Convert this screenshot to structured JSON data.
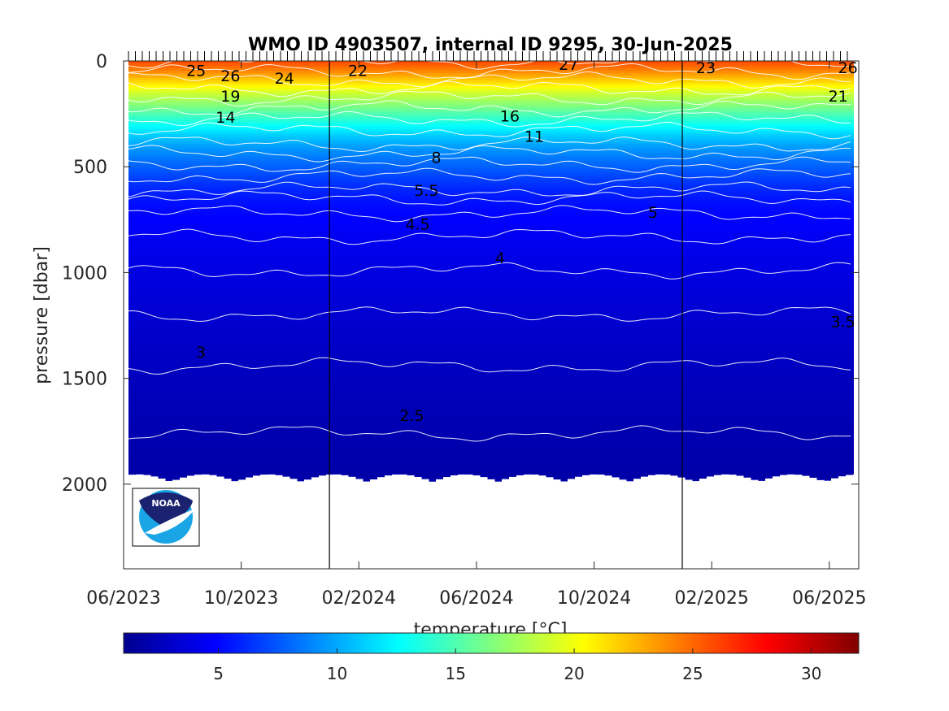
{
  "chart_data": {
    "type": "heatmap",
    "title": "WMO ID 4903507, internal ID 9295, 30-Jun-2025",
    "xlabel": "",
    "ylabel": "pressure [dbar]",
    "colorbar_label": "temperature [°C]",
    "colormap": "jet",
    "x_ticks": [
      "06/2023",
      "10/2023",
      "02/2024",
      "06/2024",
      "10/2024",
      "02/2025",
      "06/2025"
    ],
    "x_range": [
      "2023-06",
      "2025-07"
    ],
    "year_boundaries": [
      "2024-01",
      "2025-01"
    ],
    "y_ticks": [
      0,
      500,
      1000,
      1500,
      2000
    ],
    "y_range": [
      0,
      2400
    ],
    "y_reversed": true,
    "colorbar_ticks": [
      5,
      10,
      15,
      20,
      25,
      30
    ],
    "colorbar_range": [
      1,
      32
    ],
    "max_depth_dbar": 2000,
    "temperature_profile": [
      {
        "pressure": 0,
        "temperature": 26
      },
      {
        "pressure": 50,
        "temperature": 24
      },
      {
        "pressure": 100,
        "temperature": 21.5
      },
      {
        "pressure": 150,
        "temperature": 19
      },
      {
        "pressure": 200,
        "temperature": 17
      },
      {
        "pressure": 250,
        "temperature": 15
      },
      {
        "pressure": 300,
        "temperature": 13
      },
      {
        "pressure": 350,
        "temperature": 11.2
      },
      {
        "pressure": 400,
        "temperature": 9.8
      },
      {
        "pressure": 450,
        "temperature": 8.7
      },
      {
        "pressure": 500,
        "temperature": 7.8
      },
      {
        "pressure": 550,
        "temperature": 6.9
      },
      {
        "pressure": 600,
        "temperature": 6.1
      },
      {
        "pressure": 650,
        "temperature": 5.5
      },
      {
        "pressure": 700,
        "temperature": 5.1
      },
      {
        "pressure": 800,
        "temperature": 4.6
      },
      {
        "pressure": 950,
        "temperature": 4.1
      },
      {
        "pressure": 1150,
        "temperature": 3.6
      },
      {
        "pressure": 1380,
        "temperature": 3.1
      },
      {
        "pressure": 1680,
        "temperature": 2.6
      },
      {
        "pressure": 2000,
        "temperature": 2.2
      }
    ],
    "contour_labels": [
      {
        "text": "25",
        "date": "2023-08-15",
        "pressure": 45
      },
      {
        "text": "26",
        "date": "2023-09-20",
        "pressure": 70
      },
      {
        "text": "24",
        "date": "2023-11-15",
        "pressure": 80
      },
      {
        "text": "22",
        "date": "2024-01-30",
        "pressure": 45
      },
      {
        "text": "27",
        "date": "2024-09-05",
        "pressure": 15
      },
      {
        "text": "23",
        "date": "2025-01-25",
        "pressure": 30
      },
      {
        "text": "26",
        "date": "2025-06-20",
        "pressure": 30
      },
      {
        "text": "19",
        "date": "2023-09-20",
        "pressure": 165
      },
      {
        "text": "14",
        "date": "2023-09-15",
        "pressure": 265
      },
      {
        "text": "21",
        "date": "2025-06-10",
        "pressure": 165
      },
      {
        "text": "16",
        "date": "2024-07-05",
        "pressure": 260
      },
      {
        "text": "11",
        "date": "2024-07-30",
        "pressure": 355
      },
      {
        "text": "8",
        "date": "2024-04-20",
        "pressure": 455
      },
      {
        "text": "5.5",
        "date": "2024-04-10",
        "pressure": 610
      },
      {
        "text": "5",
        "date": "2024-12-01",
        "pressure": 715
      },
      {
        "text": "4.5",
        "date": "2024-04-01",
        "pressure": 770
      },
      {
        "text": "4",
        "date": "2024-06-25",
        "pressure": 930
      },
      {
        "text": "3.5",
        "date": "2025-06-15",
        "pressure": 1230
      },
      {
        "text": "3",
        "date": "2023-08-20",
        "pressure": 1375
      },
      {
        "text": "2.5",
        "date": "2024-03-25",
        "pressure": 1675
      }
    ]
  }
}
